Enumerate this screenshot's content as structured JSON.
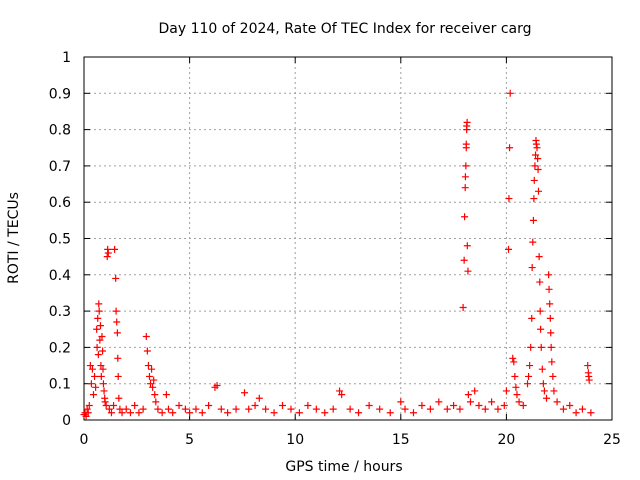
{
  "chart_data": {
    "type": "scatter",
    "title": "Day 110 of 2024, Rate Of TEC Index for receiver carg",
    "xlabel": "GPS time / hours",
    "ylabel": "ROTI / TECUs",
    "xlim": [
      0,
      25
    ],
    "ylim": [
      0,
      1
    ],
    "x_ticks": [
      "0",
      "5",
      "10",
      "15",
      "20",
      "25"
    ],
    "y_ticks": [
      "0",
      "0.1",
      "0.2",
      "0.3",
      "0.4",
      "0.5",
      "0.6",
      "0.7",
      "0.8",
      "0.9",
      "1"
    ],
    "x_tick_values": [
      0,
      5,
      10,
      15,
      20,
      25
    ],
    "y_tick_values": [
      0,
      0.1,
      0.2,
      0.3,
      0.4,
      0.5,
      0.6,
      0.7,
      0.8,
      0.9,
      1
    ],
    "grid": true,
    "marker": "+",
    "color": "#ff0000",
    "points": [
      [
        0.0,
        0.015
      ],
      [
        0.05,
        0.02
      ],
      [
        0.1,
        0.01
      ],
      [
        0.15,
        0.03
      ],
      [
        0.2,
        0.02
      ],
      [
        0.25,
        0.04
      ],
      [
        0.3,
        0.15
      ],
      [
        0.35,
        0.1
      ],
      [
        0.4,
        0.14
      ],
      [
        0.45,
        0.07
      ],
      [
        0.5,
        0.12
      ],
      [
        0.55,
        0.09
      ],
      [
        0.6,
        0.25
      ],
      [
        0.62,
        0.2
      ],
      [
        0.65,
        0.28
      ],
      [
        0.68,
        0.18
      ],
      [
        0.7,
        0.32
      ],
      [
        0.72,
        0.3
      ],
      [
        0.75,
        0.22
      ],
      [
        0.78,
        0.26
      ],
      [
        0.8,
        0.15
      ],
      [
        0.82,
        0.12
      ],
      [
        0.85,
        0.23
      ],
      [
        0.88,
        0.19
      ],
      [
        0.9,
        0.14
      ],
      [
        0.92,
        0.1
      ],
      [
        0.95,
        0.08
      ],
      [
        0.98,
        0.06
      ],
      [
        1.0,
        0.05
      ],
      [
        1.05,
        0.04
      ],
      [
        1.1,
        0.45
      ],
      [
        1.12,
        0.47
      ],
      [
        1.15,
        0.46
      ],
      [
        1.2,
        0.03
      ],
      [
        1.3,
        0.02
      ],
      [
        1.4,
        0.04
      ],
      [
        1.45,
        0.47
      ],
      [
        1.5,
        0.39
      ],
      [
        1.52,
        0.3
      ],
      [
        1.55,
        0.27
      ],
      [
        1.58,
        0.24
      ],
      [
        1.6,
        0.17
      ],
      [
        1.62,
        0.12
      ],
      [
        1.65,
        0.06
      ],
      [
        1.7,
        0.03
      ],
      [
        1.8,
        0.02
      ],
      [
        2.0,
        0.03
      ],
      [
        2.2,
        0.02
      ],
      [
        2.4,
        0.04
      ],
      [
        2.6,
        0.02
      ],
      [
        2.8,
        0.03
      ],
      [
        2.95,
        0.23
      ],
      [
        3.0,
        0.19
      ],
      [
        3.05,
        0.15
      ],
      [
        3.1,
        0.12
      ],
      [
        3.15,
        0.1
      ],
      [
        3.2,
        0.14
      ],
      [
        3.25,
        0.09
      ],
      [
        3.3,
        0.11
      ],
      [
        3.35,
        0.07
      ],
      [
        3.4,
        0.05
      ],
      [
        3.5,
        0.03
      ],
      [
        3.7,
        0.02
      ],
      [
        3.9,
        0.07
      ],
      [
        4.0,
        0.03
      ],
      [
        4.2,
        0.02
      ],
      [
        4.5,
        0.04
      ],
      [
        4.8,
        0.03
      ],
      [
        5.0,
        0.02
      ],
      [
        5.3,
        0.03
      ],
      [
        5.6,
        0.02
      ],
      [
        5.9,
        0.04
      ],
      [
        6.2,
        0.09
      ],
      [
        6.3,
        0.095
      ],
      [
        6.5,
        0.03
      ],
      [
        6.8,
        0.02
      ],
      [
        7.2,
        0.03
      ],
      [
        7.6,
        0.075
      ],
      [
        7.8,
        0.03
      ],
      [
        8.1,
        0.04
      ],
      [
        8.3,
        0.06
      ],
      [
        8.6,
        0.03
      ],
      [
        9.0,
        0.02
      ],
      [
        9.4,
        0.04
      ],
      [
        9.8,
        0.03
      ],
      [
        10.2,
        0.02
      ],
      [
        10.6,
        0.04
      ],
      [
        11.0,
        0.03
      ],
      [
        11.4,
        0.02
      ],
      [
        11.8,
        0.03
      ],
      [
        12.1,
        0.08
      ],
      [
        12.2,
        0.07
      ],
      [
        12.6,
        0.03
      ],
      [
        13.0,
        0.02
      ],
      [
        13.5,
        0.04
      ],
      [
        14.0,
        0.03
      ],
      [
        14.5,
        0.02
      ],
      [
        15.0,
        0.05
      ],
      [
        15.2,
        0.03
      ],
      [
        15.6,
        0.02
      ],
      [
        16.0,
        0.04
      ],
      [
        16.4,
        0.03
      ],
      [
        16.8,
        0.05
      ],
      [
        17.2,
        0.03
      ],
      [
        17.5,
        0.04
      ],
      [
        17.8,
        0.03
      ],
      [
        17.95,
        0.31
      ],
      [
        18.0,
        0.44
      ],
      [
        18.02,
        0.56
      ],
      [
        18.05,
        0.64
      ],
      [
        18.06,
        0.67
      ],
      [
        18.08,
        0.7
      ],
      [
        18.1,
        0.75
      ],
      [
        18.1,
        0.76
      ],
      [
        18.12,
        0.8
      ],
      [
        18.12,
        0.81
      ],
      [
        18.14,
        0.82
      ],
      [
        18.15,
        0.48
      ],
      [
        18.18,
        0.41
      ],
      [
        18.2,
        0.07
      ],
      [
        18.3,
        0.05
      ],
      [
        18.5,
        0.08
      ],
      [
        18.7,
        0.04
      ],
      [
        19.0,
        0.03
      ],
      [
        19.3,
        0.05
      ],
      [
        19.6,
        0.03
      ],
      [
        19.9,
        0.04
      ],
      [
        20.0,
        0.08
      ],
      [
        20.1,
        0.47
      ],
      [
        20.12,
        0.61
      ],
      [
        20.15,
        0.75
      ],
      [
        20.18,
        0.9
      ],
      [
        20.3,
        0.17
      ],
      [
        20.35,
        0.16
      ],
      [
        20.4,
        0.12
      ],
      [
        20.45,
        0.09
      ],
      [
        20.5,
        0.07
      ],
      [
        20.6,
        0.05
      ],
      [
        20.8,
        0.04
      ],
      [
        21.0,
        0.1
      ],
      [
        21.05,
        0.12
      ],
      [
        21.1,
        0.15
      ],
      [
        21.15,
        0.2
      ],
      [
        21.2,
        0.28
      ],
      [
        21.22,
        0.42
      ],
      [
        21.25,
        0.49
      ],
      [
        21.28,
        0.55
      ],
      [
        21.3,
        0.61
      ],
      [
        21.32,
        0.66
      ],
      [
        21.35,
        0.7
      ],
      [
        21.38,
        0.73
      ],
      [
        21.4,
        0.77
      ],
      [
        21.42,
        0.76
      ],
      [
        21.45,
        0.75
      ],
      [
        21.48,
        0.72
      ],
      [
        21.5,
        0.69
      ],
      [
        21.52,
        0.63
      ],
      [
        21.55,
        0.45
      ],
      [
        21.58,
        0.38
      ],
      [
        21.6,
        0.3
      ],
      [
        21.62,
        0.25
      ],
      [
        21.65,
        0.2
      ],
      [
        21.7,
        0.14
      ],
      [
        21.75,
        0.1
      ],
      [
        21.8,
        0.08
      ],
      [
        21.9,
        0.06
      ],
      [
        22.0,
        0.4
      ],
      [
        22.02,
        0.36
      ],
      [
        22.05,
        0.32
      ],
      [
        22.08,
        0.28
      ],
      [
        22.1,
        0.24
      ],
      [
        22.12,
        0.2
      ],
      [
        22.15,
        0.16
      ],
      [
        22.2,
        0.12
      ],
      [
        22.25,
        0.08
      ],
      [
        22.4,
        0.05
      ],
      [
        22.7,
        0.03
      ],
      [
        23.0,
        0.04
      ],
      [
        23.3,
        0.02
      ],
      [
        23.6,
        0.03
      ],
      [
        23.85,
        0.15
      ],
      [
        23.88,
        0.13
      ],
      [
        23.9,
        0.12
      ],
      [
        23.92,
        0.11
      ],
      [
        24.0,
        0.02
      ]
    ]
  }
}
